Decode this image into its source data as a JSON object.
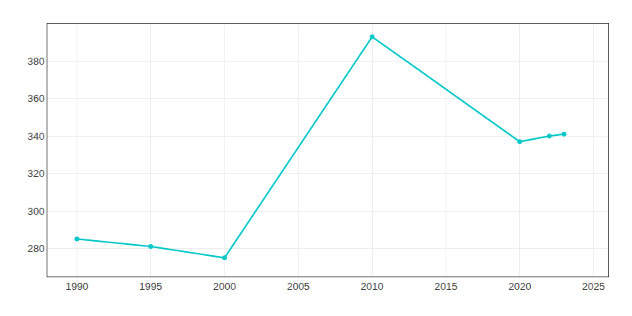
{
  "chart_data": {
    "type": "line",
    "x": [
      1990,
      1995,
      2000,
      2010,
      2020,
      2022,
      2023
    ],
    "values": [
      285,
      281,
      275,
      393,
      337,
      340,
      341
    ],
    "color": "#00C8C8",
    "marker": "circle",
    "xlim": [
      1988,
      2026
    ],
    "ylim": [
      265,
      400
    ],
    "xticks": [
      1990,
      1995,
      2000,
      2005,
      2010,
      2015,
      2020,
      2025
    ],
    "yticks": [
      280,
      300,
      320,
      340,
      360,
      380
    ],
    "grid": true
  }
}
